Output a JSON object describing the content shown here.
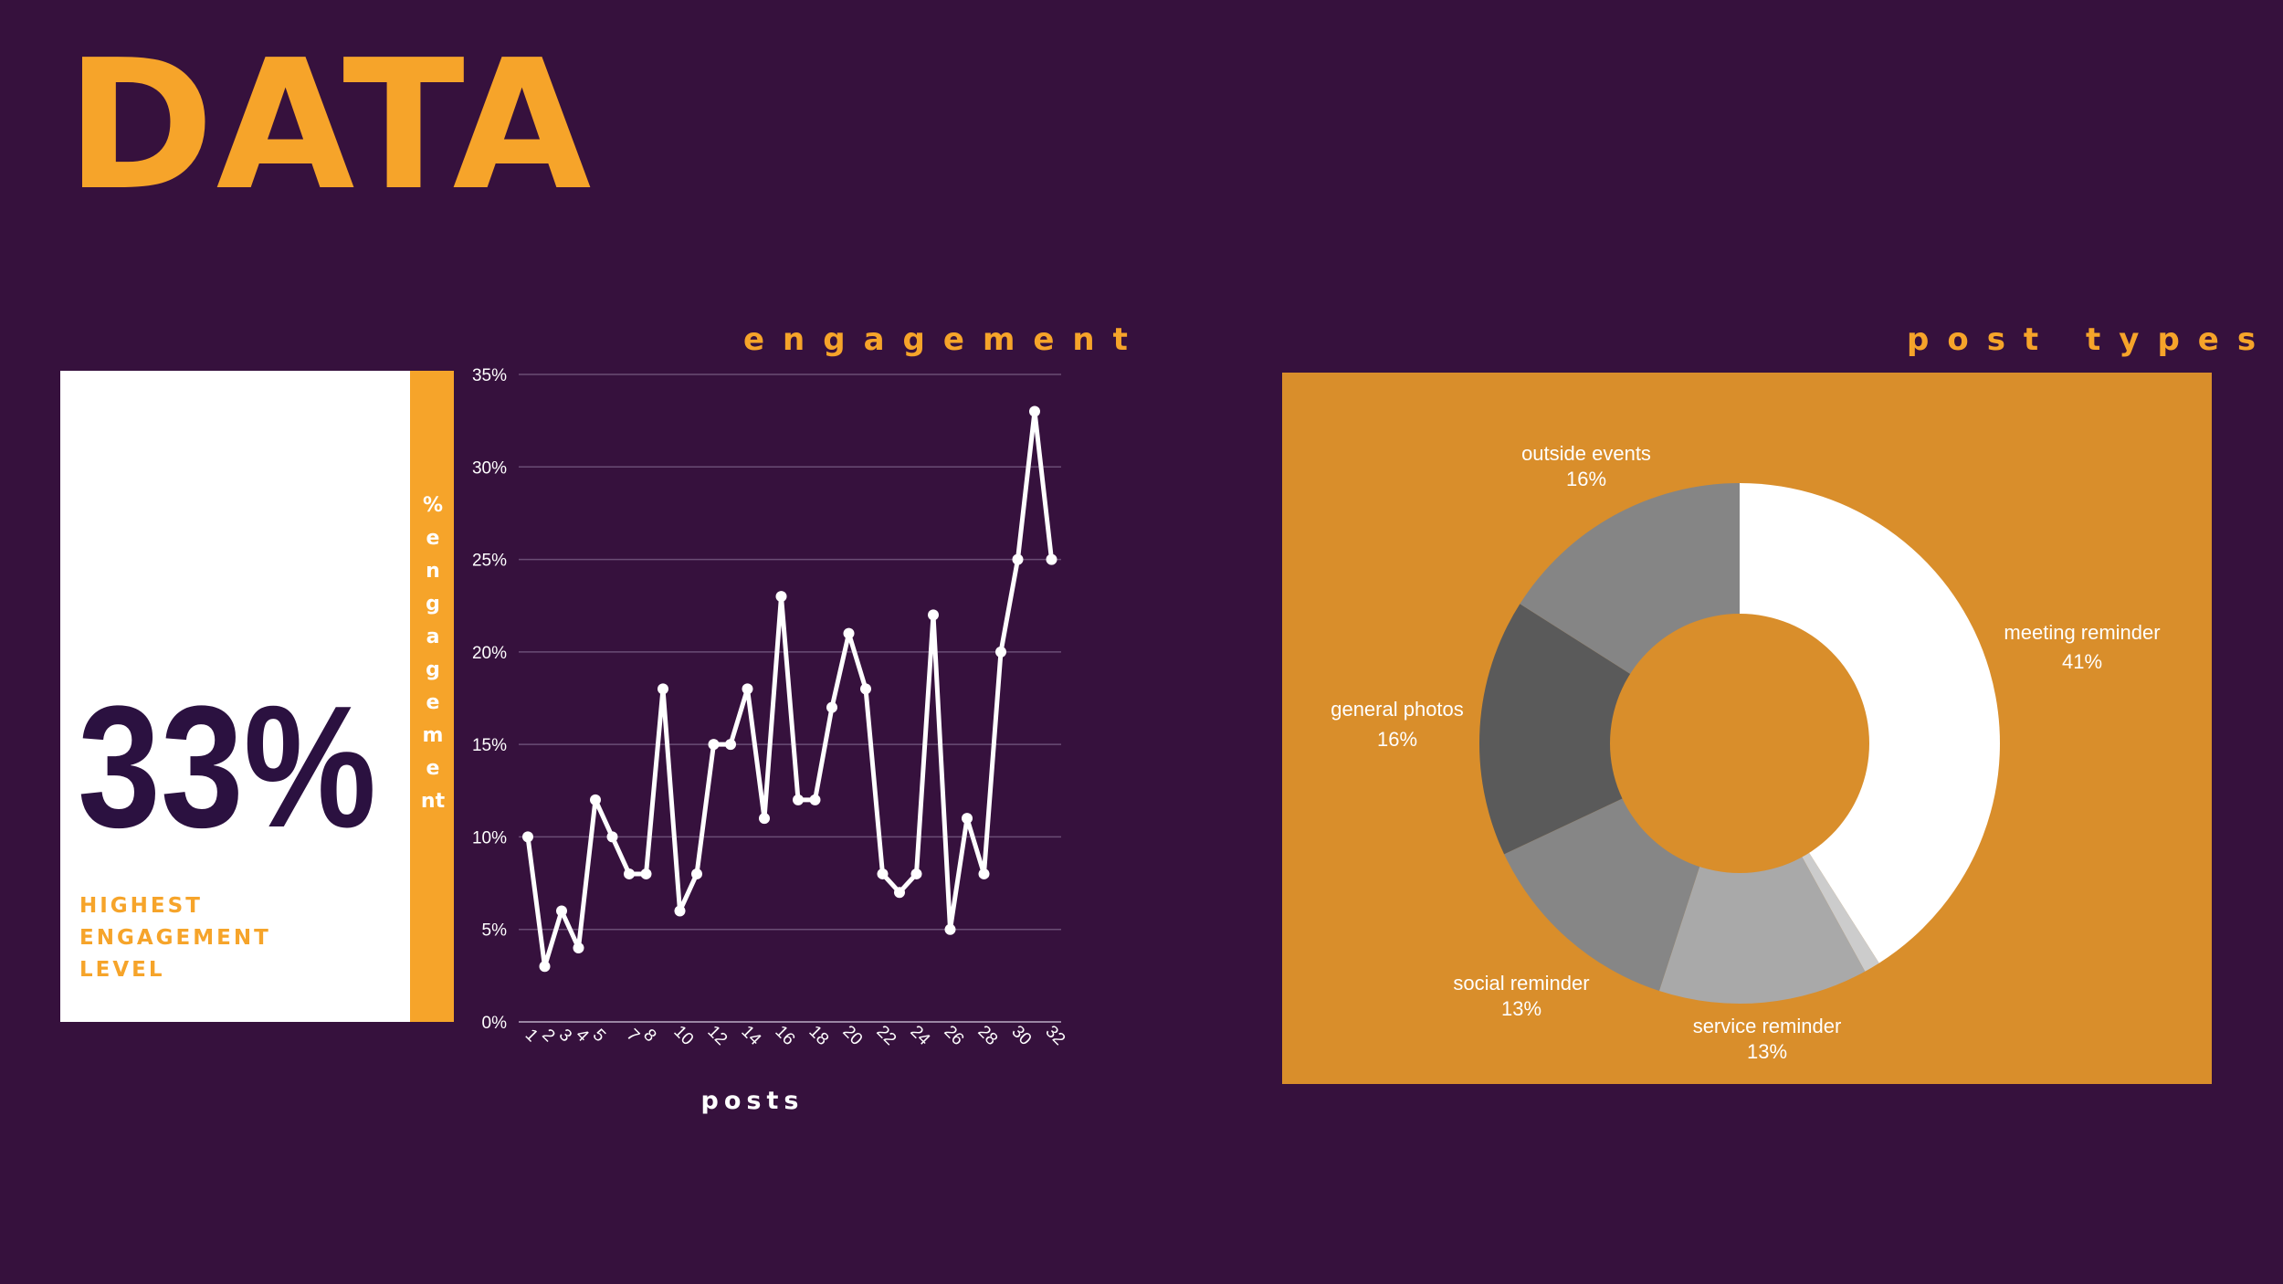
{
  "page": {
    "title": "DATA"
  },
  "highlight": {
    "value": "33%",
    "caption_lines": [
      "HIGHEST",
      "ENGAGEMENT",
      "LEVEL"
    ]
  },
  "colors": {
    "background": "#36113d",
    "accent": "#f6a42a",
    "panel": "#d98e2b",
    "line": "#ffffff"
  },
  "chart_data": [
    {
      "type": "line",
      "title": "engagement",
      "xlabel": "posts",
      "ylabel": "% engagement",
      "x": [
        1,
        2,
        3,
        4,
        5,
        6,
        7,
        8,
        9,
        10,
        11,
        12,
        13,
        14,
        15,
        16,
        17,
        18,
        19,
        20,
        21,
        22,
        23,
        24,
        25,
        26,
        27,
        28,
        29,
        30,
        31,
        32
      ],
      "values": [
        10,
        3,
        6,
        4,
        12,
        10,
        8,
        8,
        18,
        6,
        8,
        15,
        15,
        18,
        11,
        23,
        12,
        12,
        17,
        21,
        18,
        8,
        7,
        8,
        22,
        5,
        11,
        8,
        20,
        25,
        33,
        25
      ],
      "x_tick_labels": [
        "1",
        "2",
        "3",
        "4",
        "5",
        "7",
        "8",
        "10",
        "12",
        "14",
        "16",
        "18",
        "20",
        "22",
        "24",
        "26",
        "28",
        "30",
        "32"
      ],
      "y_tick_labels": [
        "0%",
        "5%",
        "10%",
        "15%",
        "20%",
        "25%",
        "30%",
        "35%"
      ],
      "ylim": [
        0,
        35
      ],
      "grid": true
    },
    {
      "type": "pie",
      "title": "post types",
      "donut": true,
      "slices": [
        {
          "label": "meeting reminder",
          "value_label": "41%",
          "value": 41,
          "color": "#ffffff"
        },
        {
          "label": "",
          "value_label": "",
          "value": 1,
          "color": "#cccccc"
        },
        {
          "label": "service reminder",
          "value_label": "13%",
          "value": 13,
          "color": "#a9a9a9"
        },
        {
          "label": "social reminder",
          "value_label": "13%",
          "value": 13,
          "color": "#868686"
        },
        {
          "label": "general photos",
          "value_label": "16%",
          "value": 16,
          "color": "#5a5a5a"
        },
        {
          "label": "outside events",
          "value_label": "16%",
          "value": 16,
          "color": "#858585"
        }
      ]
    }
  ]
}
